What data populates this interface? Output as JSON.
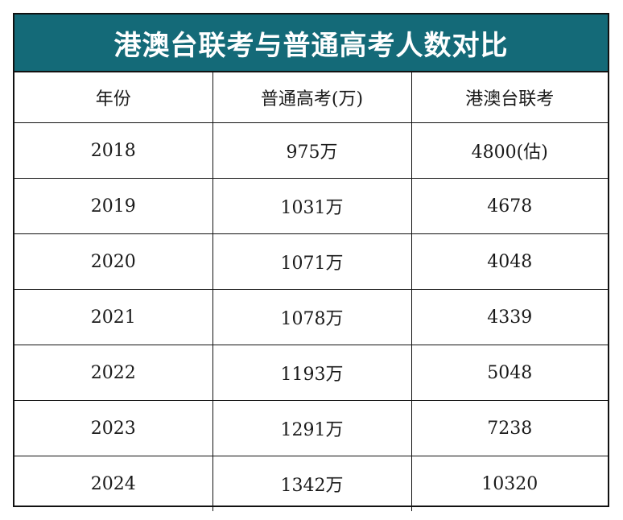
{
  "title": "港澳台联考与普通高考人数对比",
  "columns": [
    "年份",
    "普通高考(万)",
    "港澳台联考"
  ],
  "rows": [
    [
      "2018",
      "975万",
      "4800(估)"
    ],
    [
      "2019",
      "1031万",
      "4678"
    ],
    [
      "2020",
      "1071万",
      "4048"
    ],
    [
      "2021",
      "1078万",
      "4339"
    ],
    [
      "2022",
      "1193万",
      "5048"
    ],
    [
      "2023",
      "1291万",
      "7238"
    ],
    [
      "2024",
      "1342万",
      "10320"
    ]
  ],
  "colors": {
    "title_background": "#146a78",
    "title_text": "#ffffff",
    "border": "#111111"
  }
}
